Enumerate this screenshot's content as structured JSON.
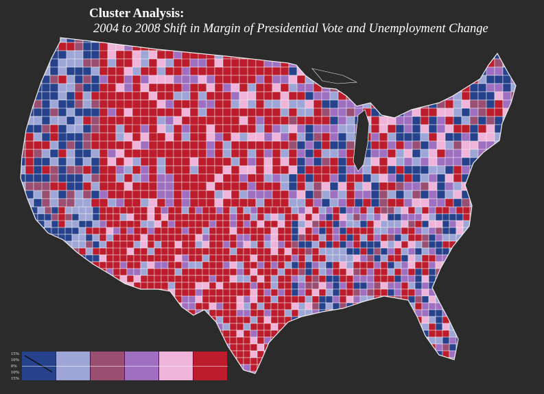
{
  "title": "Cluster Analysis:",
  "subtitle": "2004 to 2008 Shift in Margin of Presidential Vote and Unemployment Change",
  "legend": {
    "tick_labels": [
      "15%",
      "10%",
      "0%",
      "10%",
      "15%"
    ],
    "swatches": [
      {
        "color": "#27428c",
        "icon": "diagonal-line-icon"
      },
      {
        "color": "#9da6d6"
      },
      {
        "color": "#9a4e72"
      },
      {
        "color": "#9f70c2"
      },
      {
        "color": "#f0b3da"
      },
      {
        "color": "#bd1c2d"
      }
    ]
  },
  "palette": {
    "background": "#2b2b2b",
    "border": "#f2f2f2",
    "blue": "#27428c",
    "light_blue": "#9da6d6",
    "mauve": "#9a4e72",
    "purple": "#9f70c2",
    "pink": "#f0b3da",
    "red": "#bd1c2d"
  }
}
